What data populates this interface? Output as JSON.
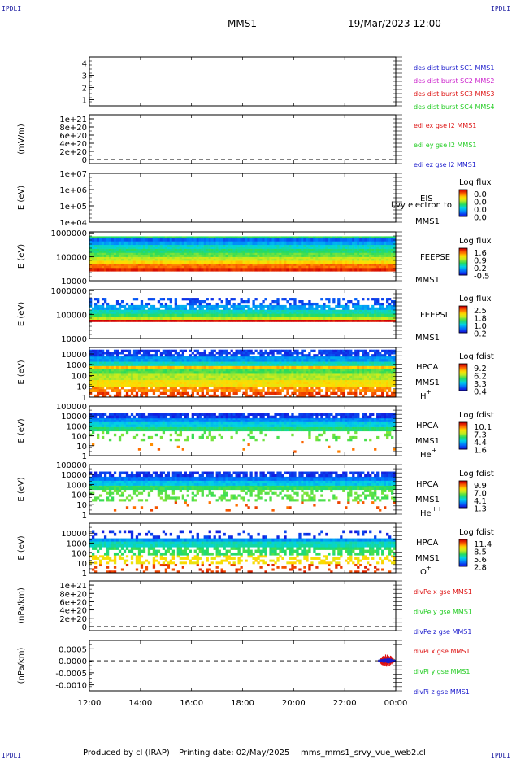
{
  "corners": {
    "tl": "IPDLI",
    "tr": "IPDLI",
    "bl": "IPDLI",
    "br": "IPDLI"
  },
  "header": {
    "mission": "MMS1",
    "datetime": "19/Mar/2023 12:00"
  },
  "footer": {
    "produced": "Produced by cl (IRAP)",
    "printing": "Printing date: 02/May/2025",
    "file": "mms_mms1_srvy_vue_web2.cl"
  },
  "colors": {
    "blue": "#1a1acc",
    "magenta": "#cc22cc",
    "red": "#dd1111",
    "green": "#22cc22",
    "colorbar": [
      "#ffffff",
      "#c8ffc8",
      "#d2ffd2"
    ],
    "dashed": "#000000"
  },
  "chart_data": [
    {
      "type": "line",
      "id": "dist",
      "ylabel": "",
      "ylim": [
        0.5,
        4.5
      ],
      "yticks": [
        "1",
        "2",
        "3",
        "4"
      ],
      "ytick_values": [
        1,
        2,
        3,
        4
      ],
      "legend": [
        {
          "text": "des dist burst SC1 MMS1",
          "color": "blue"
        },
        {
          "text": "des dist burst SC2 MMS2",
          "color": "magenta"
        },
        {
          "text": "des dist burst SC3 MMS3",
          "color": "red"
        },
        {
          "text": "des dist burst SC4 MMS4",
          "color": "green"
        }
      ],
      "series": []
    },
    {
      "type": "line",
      "id": "edi",
      "ylabel": "(mV/m)",
      "ylim": [
        -1e+20,
        1.1e+21
      ],
      "yticks": [
        "1e+21",
        "8e+20",
        "6e+20",
        "4e+20",
        "2e+20",
        "0"
      ],
      "ytick_values": [
        1e+21,
        8e+20,
        6e+20,
        4e+20,
        2e+20,
        0
      ],
      "zero_dashed": true,
      "legend": [
        {
          "text": "edi ex gse l2 MMS1",
          "color": "red"
        },
        {
          "text": "edi ey gse l2 MMS1",
          "color": "green"
        },
        {
          "text": "edi ez gse l2 MMS1",
          "color": "blue"
        }
      ],
      "series": []
    },
    {
      "type": "heatmap",
      "id": "eis",
      "ylabel": "E (eV)",
      "log": true,
      "ylim": [
        10000.0,
        10000000.0
      ],
      "yticks": [
        "1e+07",
        "1e+06",
        "1e+05",
        "1e+04"
      ],
      "ytick_values": [
        10000000.0,
        1000000.0,
        100000.0,
        10000.0
      ],
      "right_labels": [
        "EIS",
        "MMS1"
      ],
      "overlay_text": "l,vy electron to",
      "cbar": {
        "title": "Log flux",
        "ticks": [
          "0.0",
          "0.0",
          "0.0",
          "0.0"
        ]
      },
      "bands": []
    },
    {
      "type": "heatmap",
      "id": "feepse",
      "ylabel": "E (eV)",
      "log": true,
      "ylim": [
        10000.0,
        1100000.0
      ],
      "yticks": [
        "1000000",
        "100000",
        "10000"
      ],
      "ytick_values": [
        1000000.0,
        100000.0,
        10000.0
      ],
      "right_labels": [
        "FEEPSE",
        "MMS1"
      ],
      "cbar": {
        "title": "Log flux",
        "ticks": [
          "1.6",
          "0.9",
          "0.2",
          "-0.5"
        ]
      },
      "bands": [
        {
          "lo": 25000,
          "hi": 35000,
          "level": 0.95
        },
        {
          "lo": 35000,
          "hi": 50000,
          "level": 0.85
        },
        {
          "lo": 50000,
          "hi": 70000,
          "level": 0.72
        },
        {
          "lo": 70000,
          "hi": 100000,
          "level": 0.6
        },
        {
          "lo": 100000,
          "hi": 150000,
          "level": 0.5
        },
        {
          "lo": 150000,
          "hi": 220000,
          "level": 0.42
        },
        {
          "lo": 220000,
          "hi": 320000,
          "level": 0.33
        },
        {
          "lo": 320000,
          "hi": 450000,
          "level": 0.22
        },
        {
          "lo": 450000,
          "hi": 600000,
          "level": 0.12
        },
        {
          "lo": 600000,
          "hi": 720000,
          "level": 0.45
        }
      ]
    },
    {
      "type": "heatmap",
      "id": "feepsi",
      "ylabel": "E (eV)",
      "log": true,
      "ylim": [
        10000.0,
        1100000.0
      ],
      "yticks": [
        "1000000",
        "100000",
        "10000"
      ],
      "ytick_values": [
        1000000.0,
        100000.0,
        10000.0
      ],
      "right_labels": [
        "FEEPSI",
        "MMS1"
      ],
      "cbar": {
        "title": "Log flux",
        "ticks": [
          "2.5",
          "1.8",
          "1.0",
          "0.2"
        ]
      },
      "bands": [
        {
          "lo": 50000,
          "hi": 62000,
          "level": 1.0
        },
        {
          "lo": 62000,
          "hi": 80000,
          "level": 0.6
        },
        {
          "lo": 80000,
          "hi": 110000,
          "level": 0.45
        },
        {
          "lo": 110000,
          "hi": 160000,
          "level": 0.35
        },
        {
          "lo": 160000,
          "hi": 250000,
          "level": 0.22,
          "sparse": 0.25
        },
        {
          "lo": 250000,
          "hi": 500000,
          "level": 0.08,
          "sparse": 0.6
        }
      ]
    },
    {
      "type": "heatmap",
      "id": "hpca-h",
      "ylabel": "E (eV)",
      "log": true,
      "ylim": [
        1,
        40000
      ],
      "yticks": [
        "10000",
        "1000",
        "100",
        "10",
        "1"
      ],
      "ytick_values": [
        10000,
        1000,
        100,
        10,
        1
      ],
      "right_labels": [
        "HPCA",
        "MMS1",
        "H",
        "+"
      ],
      "cbar": {
        "title": "Log fdist",
        "ticks": [
          "9.2",
          "6.2",
          "3.3",
          "0.4"
        ]
      },
      "bands": [
        {
          "lo": 1,
          "hi": 3,
          "level": 0.92,
          "sparse": 0.45
        },
        {
          "lo": 3,
          "hi": 10,
          "level": 0.82,
          "sparse": 0.2
        },
        {
          "lo": 10,
          "hi": 40,
          "level": 0.7
        },
        {
          "lo": 40,
          "hi": 150,
          "level": 0.58
        },
        {
          "lo": 150,
          "hi": 400,
          "level": 0.48
        },
        {
          "lo": 400,
          "hi": 800,
          "level": 0.75
        },
        {
          "lo": 800,
          "hi": 2000,
          "level": 0.35
        },
        {
          "lo": 2000,
          "hi": 6000,
          "level": 0.2
        },
        {
          "lo": 6000,
          "hi": 25000,
          "level": 0.06,
          "sparse": 0.25
        }
      ]
    },
    {
      "type": "heatmap",
      "id": "hpca-he",
      "ylabel": "E (eV)",
      "log": true,
      "ylim": [
        1,
        100000
      ],
      "yticks": [
        "100000",
        "10000",
        "1000",
        "100",
        "10",
        "1"
      ],
      "ytick_values": [
        100000,
        10000,
        1000,
        100,
        10,
        1
      ],
      "right_labels": [
        "HPCA",
        "MMS1",
        "He",
        "+"
      ],
      "cbar": {
        "title": "Log fdist",
        "ticks": [
          "10.1",
          "7.3",
          "4.4",
          "1.6"
        ]
      },
      "bands": [
        {
          "lo": 2,
          "hi": 30,
          "level": 0.85,
          "sparse": 0.97
        },
        {
          "lo": 30,
          "hi": 300,
          "level": 0.5,
          "sparse": 0.8
        },
        {
          "lo": 300,
          "hi": 800,
          "level": 0.42
        },
        {
          "lo": 800,
          "hi": 2500,
          "level": 0.3
        },
        {
          "lo": 2500,
          "hi": 6000,
          "level": 0.18
        },
        {
          "lo": 6000,
          "hi": 20000,
          "level": 0.05,
          "sparse": 0.15
        }
      ]
    },
    {
      "type": "heatmap",
      "id": "hpca-hepp",
      "ylabel": "E (eV)",
      "log": true,
      "ylim": [
        1,
        100000
      ],
      "yticks": [
        "100000",
        "10000",
        "1000",
        "100",
        "10",
        "1"
      ],
      "ytick_values": [
        100000,
        10000,
        1000,
        100,
        10,
        1
      ],
      "right_labels": [
        "HPCA",
        "MMS1",
        "He",
        "++"
      ],
      "cbar": {
        "title": "Log fdist",
        "ticks": [
          "9.9",
          "7.0",
          "4.1",
          "1.3"
        ]
      },
      "bands": [
        {
          "lo": 2,
          "hi": 20,
          "level": 0.88,
          "sparse": 0.93
        },
        {
          "lo": 20,
          "hi": 300,
          "level": 0.5,
          "sparse": 0.6
        },
        {
          "lo": 300,
          "hi": 800,
          "level": 0.45
        },
        {
          "lo": 800,
          "hi": 2500,
          "level": 0.28
        },
        {
          "lo": 2500,
          "hi": 6000,
          "level": 0.15
        },
        {
          "lo": 6000,
          "hi": 20000,
          "level": 0.05,
          "sparse": 0.2
        }
      ]
    },
    {
      "type": "heatmap",
      "id": "hpca-o",
      "ylabel": "E (eV)",
      "log": true,
      "ylim": [
        1,
        100000
      ],
      "yticks": [
        "10000",
        "1000",
        "100",
        "10",
        "1"
      ],
      "ytick_values": [
        10000,
        1000,
        100,
        10,
        1
      ],
      "right_labels": [
        "HPCA",
        "MMS1",
        "O",
        "+"
      ],
      "cbar": {
        "title": "Log fdist",
        "ticks": [
          "11.4",
          "8.5",
          "5.6",
          "2.8"
        ]
      },
      "bands": [
        {
          "lo": 1,
          "hi": 8,
          "level": 0.92,
          "sparse": 0.8
        },
        {
          "lo": 8,
          "hi": 60,
          "level": 0.7,
          "sparse": 0.6
        },
        {
          "lo": 60,
          "hi": 400,
          "level": 0.45,
          "sparse": 0.4
        },
        {
          "lo": 400,
          "hi": 1500,
          "level": 0.35
        },
        {
          "lo": 1500,
          "hi": 3000,
          "level": 0.2
        },
        {
          "lo": 3000,
          "hi": 20000,
          "level": 0.05,
          "sparse": 0.8
        }
      ]
    },
    {
      "type": "line",
      "id": "divpe",
      "ylabel": "(nPa/km)",
      "ylim": [
        -1e+20,
        1.1e+21
      ],
      "yticks": [
        "1e+21",
        "8e+20",
        "6e+20",
        "4e+20",
        "2e+20",
        "0"
      ],
      "ytick_values": [
        1e+21,
        8e+20,
        6e+20,
        4e+20,
        2e+20,
        0
      ],
      "zero_dashed": true,
      "legend": [
        {
          "text": "divPe x gse MMS1",
          "color": "red"
        },
        {
          "text": "divPe y gse MMS1",
          "color": "green"
        },
        {
          "text": "divPe z gse MMS1",
          "color": "blue"
        }
      ],
      "series": []
    },
    {
      "type": "line",
      "id": "divpi",
      "ylabel": "(nPa/km)",
      "ylim": [
        -0.00125,
        0.00085
      ],
      "yticks": [
        "0.0005",
        "0.0000",
        "-0.0005",
        "-0.0010"
      ],
      "ytick_values": [
        0.0005,
        0,
        -0.0005,
        -0.001
      ],
      "zero_dashed": true,
      "legend": [
        {
          "text": "divPi x gse MMS1",
          "color": "red"
        },
        {
          "text": "divPi y gse MMS1",
          "color": "green"
        },
        {
          "text": "divPi z gse MMS1",
          "color": "blue"
        }
      ],
      "series": [
        {
          "name": "divPi x gse MMS1",
          "color": "red",
          "t_range": [
            23.3,
            24.0
          ],
          "amp": 0.00027
        },
        {
          "name": "divPi y gse MMS1",
          "color": "green",
          "t_range": [
            23.3,
            24.0
          ],
          "amp": 5e-05
        },
        {
          "name": "divPi z gse MMS1",
          "color": "blue",
          "t_range": [
            23.3,
            24.0
          ],
          "amp": 0.00012
        }
      ]
    }
  ],
  "time_axis": {
    "range": [
      12,
      24
    ],
    "ticks": [
      "12:00",
      "14:00",
      "16:00",
      "18:00",
      "20:00",
      "22:00",
      "00:00"
    ],
    "tick_values": [
      12,
      14,
      16,
      18,
      20,
      22,
      24
    ]
  }
}
